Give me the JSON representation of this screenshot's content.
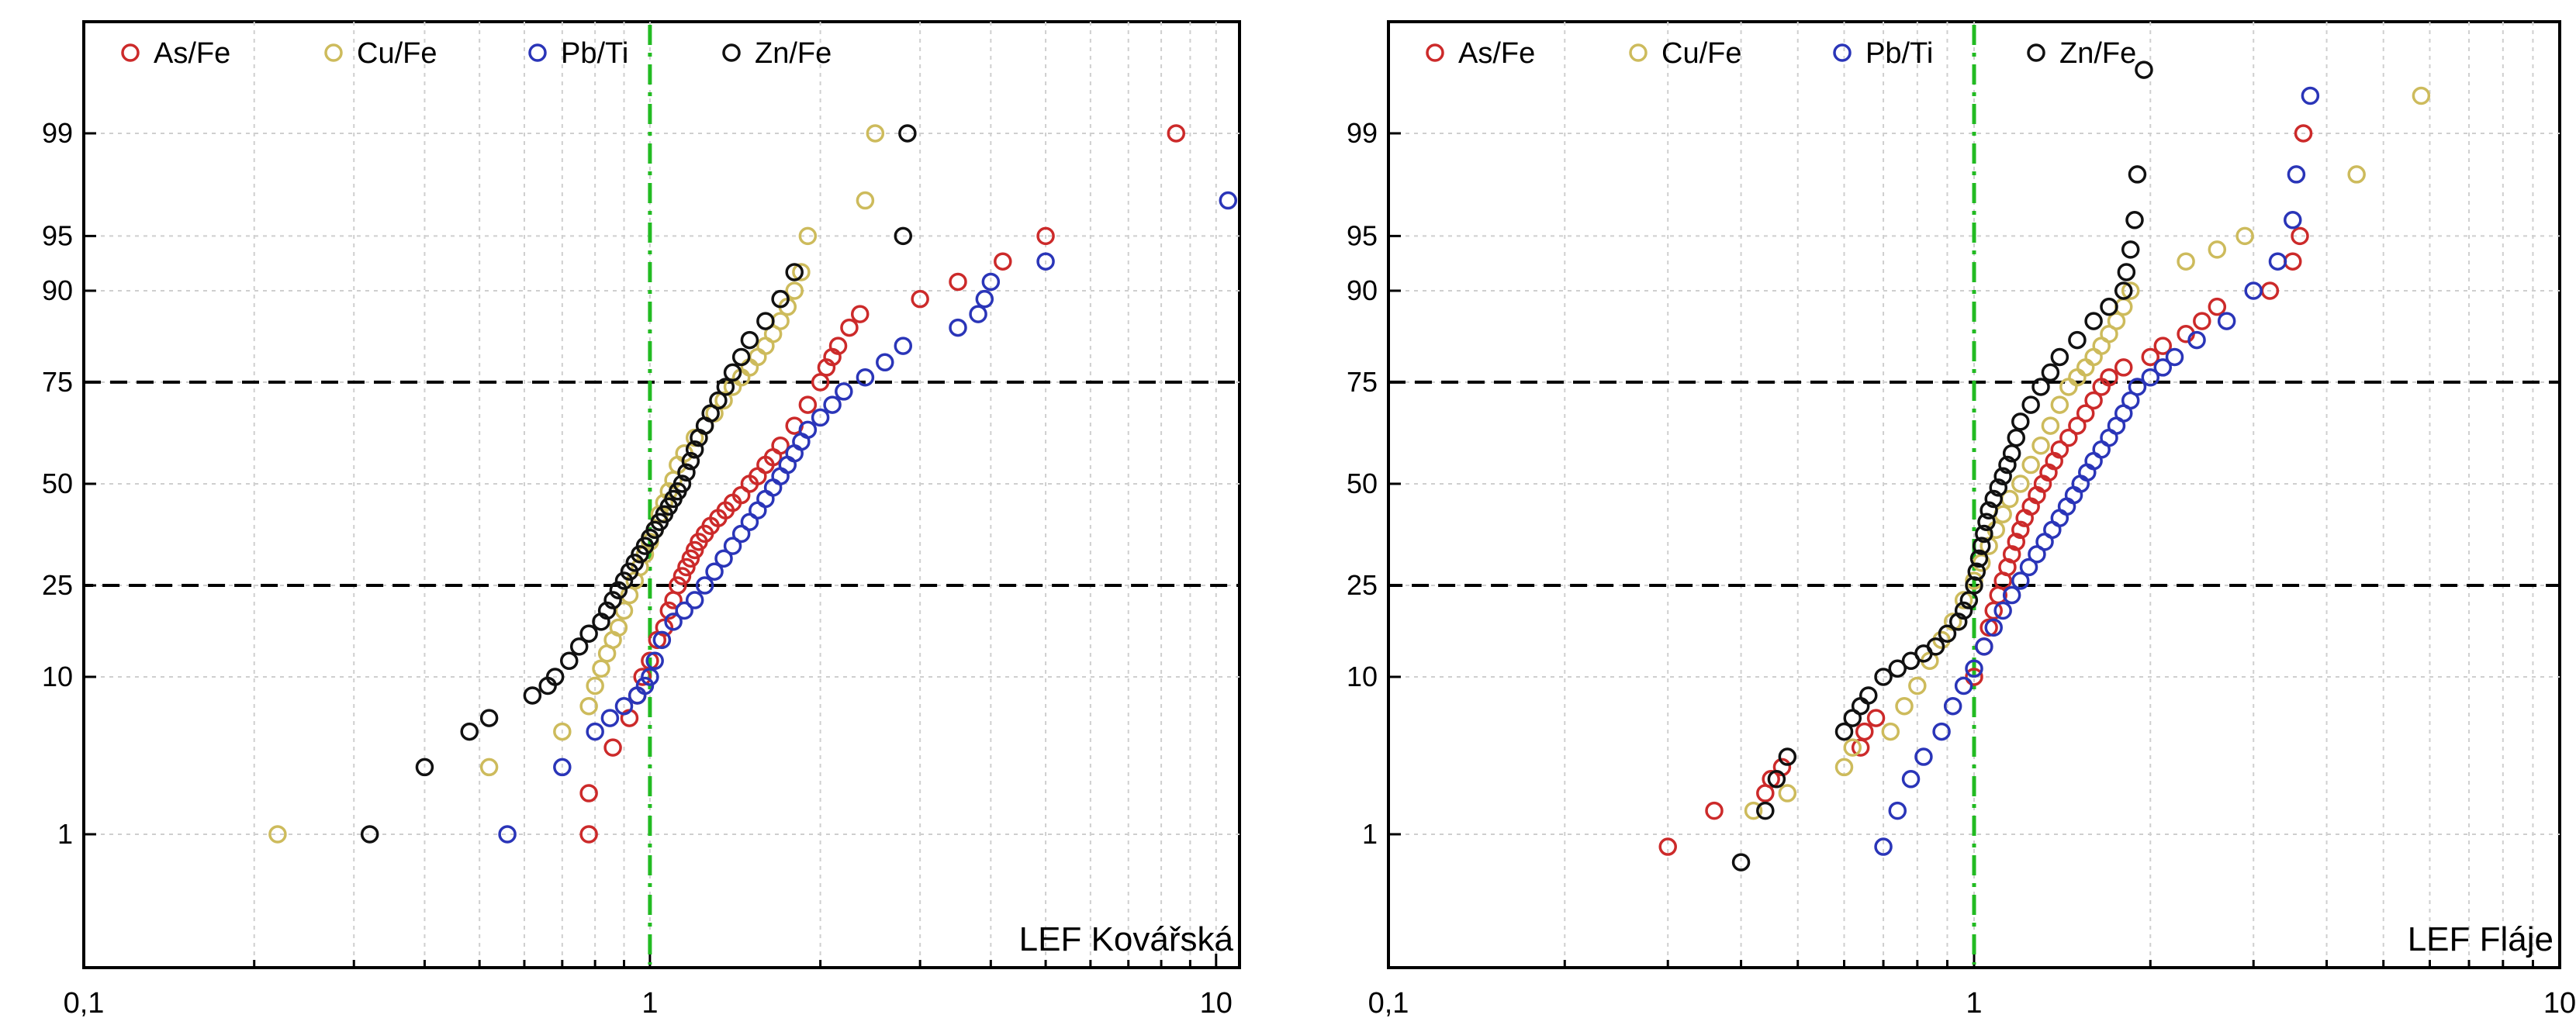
{
  "colors": {
    "As/Fe": "#cc2a2a",
    "Cu/Fe": "#cdbb5c",
    "Pb/Ti": "#2a35b8",
    "Zn/Fe": "#111111",
    "reference_line": "#22bb22"
  },
  "chart_data": [
    {
      "type": "scatter",
      "panel_label": "LEF Kovářská",
      "x_scale": "log",
      "y_scale": "probability",
      "xlim": [
        0.1,
        11
      ],
      "x_ticks": [
        0.1,
        1,
        10
      ],
      "x_tick_labels": [
        "0,1",
        "1",
        "10"
      ],
      "y_ticks": [
        1,
        10,
        25,
        50,
        75,
        90,
        95,
        99
      ],
      "y_tick_labels": [
        "1",
        "10",
        "25",
        "50",
        "75",
        "90",
        "95",
        "99"
      ],
      "legend": [
        "As/Fe",
        "Cu/Fe",
        "Pb/Ti",
        "Zn/Fe"
      ],
      "legend_position": "top",
      "reference_x": 1,
      "quartile_band": [
        25,
        75
      ],
      "grid": true,
      "series": [
        {
          "name": "As/Fe",
          "x": [
            0.78,
            0.78,
            0.86,
            0.92,
            0.95,
            0.97,
            1.0,
            1.03,
            1.06,
            1.08,
            1.1,
            1.12,
            1.14,
            1.16,
            1.18,
            1.2,
            1.22,
            1.25,
            1.28,
            1.32,
            1.36,
            1.4,
            1.45,
            1.5,
            1.55,
            1.6,
            1.65,
            1.7,
            1.8,
            1.9,
            2.0,
            2.05,
            2.1,
            2.15,
            2.25,
            2.35,
            3.0,
            3.5,
            4.2,
            5.0,
            8.5
          ],
          "y": [
            1,
            2,
            4,
            6,
            8,
            10,
            12,
            15,
            17,
            20,
            22,
            25,
            27,
            29,
            31,
            33,
            35,
            37,
            39,
            41,
            43,
            45,
            47,
            50,
            52,
            55,
            57,
            60,
            65,
            70,
            75,
            78,
            80,
            82,
            85,
            87,
            89,
            91,
            93,
            95,
            99
          ]
        },
        {
          "name": "Cu/Fe",
          "x": [
            0.22,
            0.52,
            0.7,
            0.78,
            0.8,
            0.82,
            0.84,
            0.86,
            0.88,
            0.9,
            0.92,
            0.94,
            0.96,
            0.98,
            1.0,
            1.02,
            1.04,
            1.06,
            1.08,
            1.1,
            1.12,
            1.15,
            1.2,
            1.25,
            1.3,
            1.35,
            1.4,
            1.45,
            1.5,
            1.55,
            1.6,
            1.65,
            1.7,
            1.75,
            1.8,
            1.85,
            1.9,
            2.4,
            2.5
          ],
          "y": [
            1,
            3,
            5,
            7,
            9,
            11,
            13,
            15,
            17,
            20,
            23,
            26,
            29,
            32,
            35,
            38,
            42,
            45,
            48,
            51,
            55,
            58,
            62,
            65,
            68,
            71,
            74,
            76,
            78,
            80,
            82,
            84,
            86,
            88,
            90,
            92,
            95,
            97,
            99
          ]
        },
        {
          "name": "Pb/Ti",
          "x": [
            0.56,
            0.7,
            0.8,
            0.85,
            0.9,
            0.95,
            0.98,
            1.0,
            1.02,
            1.05,
            1.1,
            1.15,
            1.2,
            1.25,
            1.3,
            1.35,
            1.4,
            1.45,
            1.5,
            1.55,
            1.6,
            1.65,
            1.7,
            1.75,
            1.8,
            1.85,
            1.9,
            2.0,
            2.1,
            2.2,
            2.4,
            2.6,
            2.8,
            3.5,
            3.8,
            3.9,
            4.0,
            5.0,
            10.5
          ],
          "y": [
            1,
            3,
            5,
            6,
            7,
            8,
            9,
            10,
            12,
            15,
            18,
            20,
            22,
            25,
            28,
            31,
            34,
            37,
            40,
            43,
            46,
            49,
            52,
            55,
            58,
            61,
            64,
            67,
            70,
            73,
            76,
            79,
            82,
            85,
            87,
            89,
            91,
            93,
            97
          ]
        },
        {
          "name": "Zn/Fe",
          "x": [
            0.32,
            0.4,
            0.48,
            0.52,
            0.62,
            0.66,
            0.68,
            0.72,
            0.75,
            0.78,
            0.82,
            0.84,
            0.86,
            0.88,
            0.9,
            0.92,
            0.94,
            0.96,
            0.98,
            1.0,
            1.02,
            1.04,
            1.06,
            1.08,
            1.1,
            1.12,
            1.14,
            1.16,
            1.18,
            1.2,
            1.22,
            1.25,
            1.28,
            1.32,
            1.36,
            1.4,
            1.45,
            1.5,
            1.6,
            1.7,
            1.8,
            2.8,
            2.85
          ],
          "y": [
            1,
            3,
            5,
            6,
            8,
            9,
            10,
            12,
            14,
            16,
            18,
            20,
            22,
            24,
            26,
            28,
            30,
            32,
            34,
            36,
            38,
            40,
            42,
            44,
            46,
            48,
            50,
            53,
            56,
            59,
            62,
            65,
            68,
            71,
            74,
            77,
            80,
            83,
            86,
            89,
            92,
            95,
            99
          ]
        }
      ]
    },
    {
      "type": "scatter",
      "panel_label": "LEF Fláje",
      "x_scale": "log",
      "y_scale": "probability",
      "xlim": [
        0.1,
        10
      ],
      "x_ticks": [
        0.1,
        1,
        10
      ],
      "x_tick_labels": [
        "0,1",
        "1",
        "10"
      ],
      "y_ticks": [
        1,
        10,
        25,
        50,
        75,
        90,
        95,
        99
      ],
      "y_tick_labels": [
        "1",
        "10",
        "25",
        "50",
        "75",
        "90",
        "95",
        "99"
      ],
      "legend": [
        "As/Fe",
        "Cu/Fe",
        "Pb/Ti",
        "Zn/Fe"
      ],
      "legend_position": "top",
      "reference_x": 1,
      "quartile_band": [
        25,
        75
      ],
      "grid": true,
      "series": [
        {
          "name": "As/Fe",
          "x": [
            0.3,
            0.36,
            0.44,
            0.45,
            0.47,
            0.64,
            0.65,
            0.68,
            1.0,
            1.04,
            1.06,
            1.08,
            1.1,
            1.12,
            1.14,
            1.16,
            1.18,
            1.2,
            1.22,
            1.25,
            1.28,
            1.31,
            1.34,
            1.37,
            1.4,
            1.45,
            1.5,
            1.55,
            1.6,
            1.65,
            1.7,
            1.8,
            2.0,
            2.1,
            2.3,
            2.45,
            2.6,
            3.2,
            3.5,
            3.6,
            3.65
          ],
          "y": [
            0.8,
            1.5,
            2,
            2.5,
            3,
            4,
            5,
            6,
            10,
            14,
            17,
            20,
            23,
            26,
            29,
            32,
            35,
            38,
            41,
            44,
            47,
            50,
            53,
            56,
            59,
            62,
            65,
            68,
            71,
            74,
            76,
            78,
            80,
            82,
            84,
            86,
            88,
            90,
            93,
            95,
            99
          ]
        },
        {
          "name": "Cu/Fe",
          "x": [
            0.42,
            0.48,
            0.6,
            0.62,
            0.72,
            0.76,
            0.8,
            0.84,
            0.88,
            0.92,
            0.96,
            1.0,
            1.03,
            1.06,
            1.09,
            1.12,
            1.15,
            1.2,
            1.25,
            1.3,
            1.35,
            1.4,
            1.45,
            1.5,
            1.55,
            1.6,
            1.65,
            1.7,
            1.75,
            1.8,
            1.85,
            2.3,
            2.6,
            2.9,
            4.5,
            5.8
          ],
          "y": [
            1.5,
            2,
            3,
            4,
            5,
            7,
            9,
            12,
            15,
            18,
            22,
            26,
            30,
            34,
            38,
            42,
            46,
            50,
            55,
            60,
            65,
            70,
            74,
            76,
            78,
            80,
            82,
            84,
            86,
            88,
            90,
            93,
            94,
            95,
            98,
            99.5
          ]
        },
        {
          "name": "Pb/Ti",
          "x": [
            0.7,
            0.74,
            0.78,
            0.82,
            0.88,
            0.92,
            0.96,
            1.0,
            1.04,
            1.08,
            1.12,
            1.16,
            1.2,
            1.24,
            1.28,
            1.32,
            1.36,
            1.4,
            1.44,
            1.48,
            1.52,
            1.56,
            1.6,
            1.65,
            1.7,
            1.75,
            1.8,
            1.85,
            1.9,
            2.0,
            2.1,
            2.2,
            2.4,
            2.7,
            3.0,
            3.3,
            3.5,
            3.55,
            3.75
          ],
          "y": [
            0.8,
            1.5,
            2.5,
            3.5,
            5,
            7,
            9,
            11,
            14,
            17,
            20,
            23,
            26,
            29,
            32,
            35,
            38,
            41,
            44,
            47,
            50,
            53,
            56,
            59,
            62,
            65,
            68,
            71,
            74,
            76,
            78,
            80,
            83,
            86,
            90,
            93,
            96,
            98,
            99.5
          ]
        },
        {
          "name": "Zn/Fe",
          "x": [
            0.4,
            0.44,
            0.46,
            0.48,
            0.6,
            0.62,
            0.64,
            0.66,
            0.7,
            0.74,
            0.78,
            0.82,
            0.86,
            0.9,
            0.94,
            0.96,
            0.98,
            1.0,
            1.01,
            1.02,
            1.03,
            1.04,
            1.05,
            1.06,
            1.08,
            1.1,
            1.12,
            1.14,
            1.16,
            1.18,
            1.2,
            1.25,
            1.3,
            1.35,
            1.4,
            1.5,
            1.6,
            1.7,
            1.8,
            1.82,
            1.85,
            1.88,
            1.9,
            1.95
          ],
          "y": [
            0.6,
            1.5,
            2.5,
            3.5,
            5,
            6,
            7,
            8,
            10,
            11,
            12,
            13,
            14,
            16,
            18,
            20,
            22,
            25,
            28,
            31,
            34,
            37,
            40,
            43,
            46,
            49,
            52,
            55,
            58,
            62,
            66,
            70,
            74,
            77,
            80,
            83,
            86,
            88,
            90,
            92,
            94,
            96,
            98,
            99.7
          ]
        }
      ]
    }
  ]
}
